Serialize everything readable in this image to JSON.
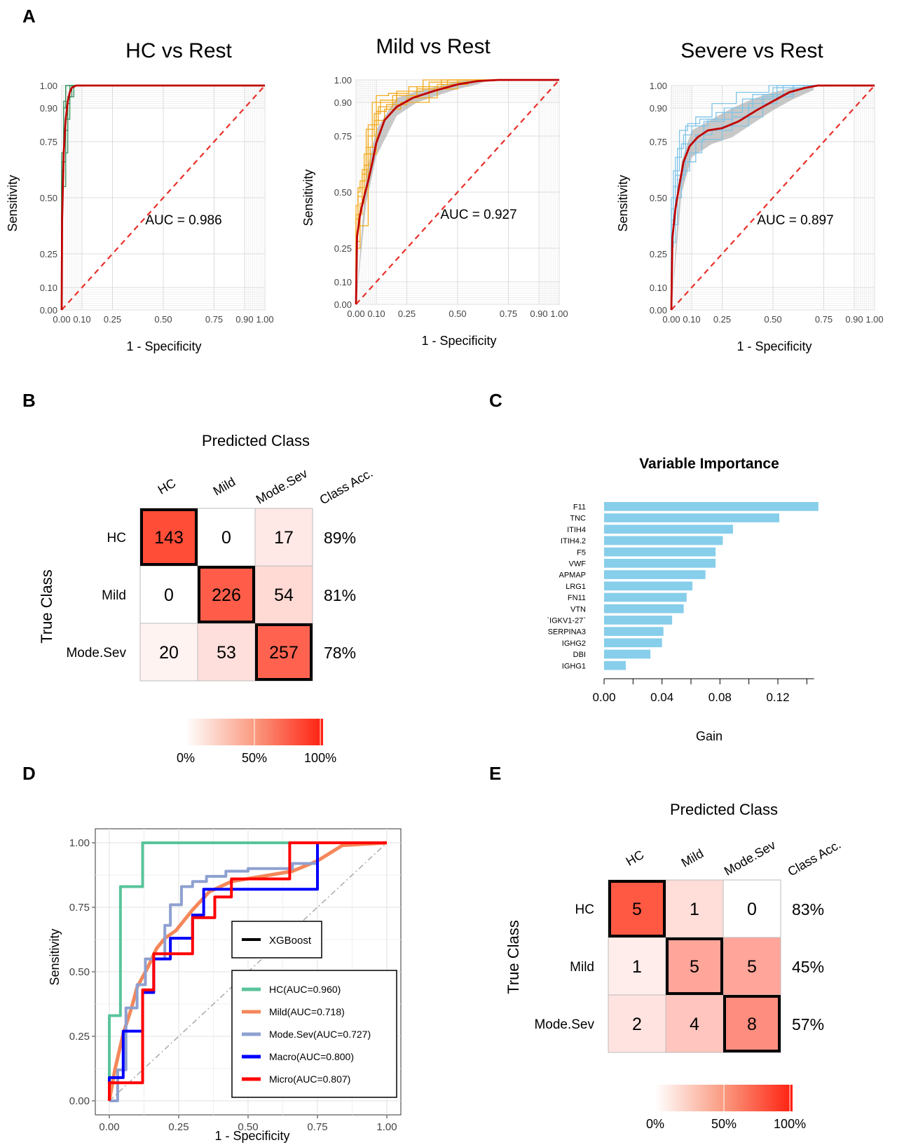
{
  "panels": {
    "A": "A",
    "B": "B",
    "C": "C",
    "D": "D",
    "E": "E"
  },
  "colors": {
    "mean_roc": "#c00000",
    "diagonal": "#e8302a",
    "hc": "#2e8b57",
    "mild": "#f0a81c",
    "severe": "#7fc3e6",
    "gain_bar": "#87ceeb",
    "heat_low": "#ffffff",
    "heat_high": "#ff0000",
    "d_hc": "#59c49b",
    "d_mild": "#f4875a",
    "d_modesev": "#8ea0d0",
    "d_macro": "#0000ff",
    "d_micro": "#ff0000"
  },
  "chart_data": [
    {
      "id": "A1",
      "type": "line",
      "title": "HC vs Rest",
      "xlabel": "1 - Specificity",
      "ylabel": "Sensitivity",
      "xlim": [
        0,
        1
      ],
      "ylim": [
        0,
        1
      ],
      "x_ticks": [
        "0.00",
        "0.10",
        "0.25",
        "0.50",
        "0.75",
        "0.90",
        "1.00"
      ],
      "x_tick_values": [
        0,
        0.1,
        0.25,
        0.5,
        0.75,
        0.9,
        1.0
      ],
      "y_ticks": [
        "0.00",
        "0.10",
        "0.25",
        "0.50",
        "0.75",
        "0.90",
        "1.00"
      ],
      "y_tick_values": [
        0,
        0.1,
        0.25,
        0.5,
        0.75,
        0.9,
        1.0
      ],
      "annotation": "AUC = 0.986",
      "mean_curve": {
        "x": [
          0,
          0.002,
          0.01,
          0.02,
          0.03,
          0.04,
          0.05,
          0.07,
          1.0
        ],
        "y": [
          0,
          0.4,
          0.7,
          0.85,
          0.93,
          0.97,
          0.99,
          1.0,
          1.0
        ]
      },
      "fold_curves": [
        {
          "x": [
            0,
            0.01,
            0.02,
            0.03,
            0.05,
            1
          ],
          "y": [
            0,
            0.58,
            0.9,
            1.0,
            1.0,
            1.0
          ]
        },
        {
          "x": [
            0,
            0.02,
            0.03,
            0.05,
            0.07,
            1
          ],
          "y": [
            0,
            0.55,
            0.7,
            0.95,
            1.0,
            1.0
          ]
        },
        {
          "x": [
            0,
            0.01,
            0.03,
            0.04,
            0.08,
            1
          ],
          "y": [
            0,
            0.62,
            0.8,
            0.92,
            1.0,
            1.0
          ]
        },
        {
          "x": [
            0,
            0.02,
            0.04,
            0.06,
            0.09,
            1
          ],
          "y": [
            0,
            0.66,
            0.85,
            0.95,
            1.0,
            1.0
          ]
        },
        {
          "x": [
            0,
            0.01,
            0.02,
            0.04,
            1
          ],
          "y": [
            0,
            0.7,
            0.93,
            1.0,
            1.0
          ]
        }
      ],
      "color_key": "hc"
    },
    {
      "id": "A2",
      "type": "line",
      "title": "Mild vs Rest",
      "xlabel": "1 - Specificity",
      "ylabel": "Sensitivity",
      "xlim": [
        0,
        1
      ],
      "ylim": [
        0,
        1
      ],
      "x_ticks": [
        "0.00",
        "0.10",
        "0.25",
        "0.50",
        "0.75",
        "0.90",
        "1.00"
      ],
      "x_tick_values": [
        0,
        0.1,
        0.25,
        0.5,
        0.75,
        0.9,
        1.0
      ],
      "y_ticks": [
        "0.00",
        "0.10",
        "0.25",
        "0.50",
        "0.75",
        "0.90",
        "1.00"
      ],
      "y_tick_values": [
        0,
        0.1,
        0.25,
        0.5,
        0.75,
        0.9,
        1.0
      ],
      "annotation": "AUC = 0.927",
      "mean_curve": {
        "x": [
          0,
          0.005,
          0.02,
          0.04,
          0.06,
          0.08,
          0.1,
          0.14,
          0.2,
          0.28,
          0.38,
          0.5,
          0.6,
          0.7,
          1.0
        ],
        "y": [
          0,
          0.3,
          0.4,
          0.48,
          0.55,
          0.63,
          0.72,
          0.82,
          0.88,
          0.92,
          0.95,
          0.98,
          0.995,
          1.0,
          1.0
        ]
      },
      "band": {
        "x": [
          0,
          0.05,
          0.1,
          0.2,
          0.3,
          0.4,
          0.5,
          0.6,
          0.65
        ],
        "lower": [
          0,
          0.45,
          0.66,
          0.84,
          0.9,
          0.93,
          0.96,
          0.98,
          1.0
        ],
        "upper": [
          0,
          0.58,
          0.78,
          0.92,
          0.95,
          0.97,
          0.995,
          1.0,
          1.0
        ]
      },
      "fold_curves": [
        {
          "x": [
            0,
            0.01,
            0.02,
            0.05,
            0.09,
            0.12,
            0.2,
            0.3,
            0.45,
            0.6,
            1
          ],
          "y": [
            0,
            0.32,
            0.5,
            0.55,
            0.78,
            0.85,
            0.9,
            0.93,
            0.97,
            1.0,
            1.0
          ]
        },
        {
          "x": [
            0,
            0.02,
            0.04,
            0.07,
            0.1,
            0.15,
            0.25,
            0.4,
            0.55,
            1
          ],
          "y": [
            0,
            0.25,
            0.45,
            0.62,
            0.7,
            0.86,
            0.89,
            0.92,
            0.98,
            1.0
          ]
        },
        {
          "x": [
            0,
            0.01,
            0.03,
            0.06,
            0.11,
            0.18,
            0.3,
            0.5,
            0.62,
            1
          ],
          "y": [
            0,
            0.38,
            0.48,
            0.6,
            0.8,
            0.88,
            0.93,
            0.96,
            1.0,
            1.0
          ]
        },
        {
          "x": [
            0,
            0.03,
            0.05,
            0.08,
            0.12,
            0.2,
            0.33,
            0.48,
            1
          ],
          "y": [
            0,
            0.4,
            0.58,
            0.7,
            0.9,
            0.91,
            0.95,
            1.0,
            1.0
          ]
        },
        {
          "x": [
            0,
            0.02,
            0.06,
            0.09,
            0.14,
            0.22,
            0.36,
            0.58,
            1
          ],
          "y": [
            0,
            0.28,
            0.35,
            0.75,
            0.82,
            0.87,
            0.9,
            0.99,
            1.0
          ]
        },
        {
          "x": [
            0,
            0.01,
            0.04,
            0.1,
            0.16,
            0.26,
            0.42,
            0.66,
            1
          ],
          "y": [
            0,
            0.44,
            0.52,
            0.67,
            0.93,
            0.94,
            0.97,
            1.0,
            1.0
          ]
        }
      ],
      "color_key": "mild"
    },
    {
      "id": "A3",
      "type": "line",
      "title": "Severe vs Rest",
      "xlabel": "1 - Specificity",
      "ylabel": "Sensitivity",
      "xlim": [
        0,
        1
      ],
      "ylim": [
        0,
        1
      ],
      "x_ticks": [
        "0.00",
        "0.10",
        "0.25",
        "0.50",
        "0.75",
        "0.90",
        "1.00"
      ],
      "x_tick_values": [
        0,
        0.1,
        0.25,
        0.5,
        0.75,
        0.9,
        1.0
      ],
      "y_ticks": [
        "0.00",
        "0.10",
        "0.25",
        "0.50",
        "0.75",
        "0.90",
        "1.00"
      ],
      "y_tick_values": [
        0,
        0.1,
        0.25,
        0.5,
        0.75,
        0.9,
        1.0
      ],
      "annotation": "AUC = 0.897",
      "mean_curve": {
        "x": [
          0,
          0.005,
          0.02,
          0.04,
          0.06,
          0.09,
          0.13,
          0.18,
          0.25,
          0.33,
          0.42,
          0.5,
          0.58,
          0.66,
          0.72,
          1.0
        ],
        "y": [
          0,
          0.32,
          0.45,
          0.56,
          0.66,
          0.73,
          0.77,
          0.8,
          0.81,
          0.84,
          0.89,
          0.93,
          0.97,
          0.99,
          1.0,
          1.0
        ]
      },
      "band": {
        "x": [
          0,
          0.05,
          0.1,
          0.2,
          0.3,
          0.4,
          0.5,
          0.6,
          0.7
        ],
        "lower": [
          0,
          0.52,
          0.68,
          0.74,
          0.77,
          0.83,
          0.89,
          0.94,
          0.98
        ],
        "upper": [
          0,
          0.66,
          0.8,
          0.85,
          0.9,
          0.94,
          0.97,
          0.99,
          1.0
        ]
      },
      "fold_curves": [
        {
          "x": [
            0,
            0.01,
            0.03,
            0.06,
            0.1,
            0.18,
            0.3,
            0.45,
            0.6,
            0.75,
            1
          ],
          "y": [
            0,
            0.4,
            0.55,
            0.72,
            0.78,
            0.82,
            0.85,
            0.9,
            0.96,
            1.0,
            1.0
          ]
        },
        {
          "x": [
            0,
            0.02,
            0.05,
            0.09,
            0.15,
            0.25,
            0.38,
            0.52,
            0.7,
            1
          ],
          "y": [
            0,
            0.3,
            0.5,
            0.62,
            0.7,
            0.76,
            0.82,
            0.92,
            1.0,
            1.0
          ]
        },
        {
          "x": [
            0,
            0.01,
            0.04,
            0.08,
            0.14,
            0.22,
            0.35,
            0.5,
            0.65,
            1
          ],
          "y": [
            0,
            0.45,
            0.62,
            0.8,
            0.83,
            0.85,
            0.88,
            0.94,
            0.99,
            1.0
          ]
        },
        {
          "x": [
            0,
            0.03,
            0.06,
            0.12,
            0.2,
            0.3,
            0.45,
            0.6,
            0.72,
            1
          ],
          "y": [
            0,
            0.38,
            0.58,
            0.66,
            0.78,
            0.8,
            0.86,
            0.95,
            1.0,
            1.0
          ]
        },
        {
          "x": [
            0,
            0.02,
            0.05,
            0.1,
            0.16,
            0.26,
            0.4,
            0.55,
            0.68,
            1
          ],
          "y": [
            0,
            0.5,
            0.68,
            0.74,
            0.75,
            0.84,
            0.9,
            0.96,
            1.0,
            1.0
          ]
        },
        {
          "x": [
            0,
            0.01,
            0.02,
            0.07,
            0.12,
            0.2,
            0.32,
            0.48,
            0.62,
            1
          ],
          "y": [
            0,
            0.28,
            0.42,
            0.6,
            0.82,
            0.86,
            0.92,
            0.97,
            1.0,
            1.0
          ]
        }
      ],
      "color_key": "severe"
    },
    {
      "id": "B",
      "type": "heatmap",
      "title": "Predicted Class",
      "ylabel": "True Class",
      "columns": [
        "HC",
        "Mild",
        "Mode.Sev",
        "Class Acc."
      ],
      "rows": [
        "HC",
        "Mild",
        "Mode.Sev"
      ],
      "values": [
        [
          143,
          0,
          17
        ],
        [
          0,
          226,
          54
        ],
        [
          20,
          53,
          257
        ]
      ],
      "fractions": [
        [
          0.89,
          0.0,
          0.11
        ],
        [
          0.0,
          0.81,
          0.19
        ],
        [
          0.06,
          0.16,
          0.78
        ]
      ],
      "class_acc": [
        "89%",
        "81%",
        "78%"
      ],
      "legend_ticks": [
        "0%",
        "50%",
        "100%"
      ]
    },
    {
      "id": "C",
      "type": "bar",
      "orientation": "horizontal",
      "title": "Variable Importance",
      "xlabel": "Gain",
      "categories": [
        "F11",
        "TNC",
        "ITIH4",
        "ITIH4.2",
        "F5",
        "VWF",
        "APMAP",
        "LRG1",
        "FN11",
        "VTN",
        "`IGKV1-27`",
        "SERPINA3",
        "IGHG2",
        "DBI",
        "IGHG1"
      ],
      "values": [
        0.148,
        0.121,
        0.089,
        0.082,
        0.077,
        0.077,
        0.07,
        0.061,
        0.057,
        0.055,
        0.047,
        0.041,
        0.04,
        0.032,
        0.015
      ],
      "xlim": [
        0,
        0.15
      ],
      "x_ticks": [
        "0.00",
        "0.04",
        "0.08",
        "0.12"
      ],
      "x_tick_values": [
        0,
        0.04,
        0.08,
        0.12
      ]
    },
    {
      "id": "D",
      "type": "line",
      "xlabel": "1 - Specificity",
      "ylabel": "Sensitivity",
      "xlim": [
        0,
        1
      ],
      "ylim": [
        0,
        1
      ],
      "x_ticks": [
        "0.00",
        "0.25",
        "0.50",
        "0.75",
        "1.00"
      ],
      "x_tick_values": [
        0,
        0.25,
        0.5,
        0.75,
        1.0
      ],
      "y_ticks": [
        "0.00",
        "0.25",
        "0.50",
        "0.75",
        "1.00"
      ],
      "y_tick_values": [
        0,
        0.25,
        0.5,
        0.75,
        1.0
      ],
      "legend_title": "XGBoost",
      "series": [
        {
          "name": "HC(AUC=0.960)",
          "color_key": "d_hc",
          "x": [
            0,
            0,
            0.04,
            0.04,
            0.12,
            0.12,
            1.0
          ],
          "y": [
            0,
            0.33,
            0.33,
            0.83,
            0.83,
            1.0,
            1.0
          ]
        },
        {
          "name": "Mild(AUC=0.718)",
          "color_key": "d_mild",
          "x": [
            0,
            0.02,
            0.05,
            0.08,
            0.1,
            0.14,
            0.17,
            0.2,
            0.24,
            0.3,
            0.36,
            0.44,
            0.55,
            0.66,
            0.75,
            0.84,
            1.0
          ],
          "y": [
            0,
            0.12,
            0.26,
            0.36,
            0.44,
            0.52,
            0.59,
            0.63,
            0.66,
            0.74,
            0.81,
            0.85,
            0.87,
            0.89,
            0.93,
            0.99,
            1.0
          ]
        },
        {
          "name": "Mode.Sev(AUC=0.727)",
          "color_key": "d_modesev",
          "x": [
            0,
            0.03,
            0.03,
            0.06,
            0.06,
            0.1,
            0.1,
            0.13,
            0.13,
            0.2,
            0.2,
            0.22,
            0.22,
            0.26,
            0.26,
            0.3,
            0.3,
            0.35,
            0.35,
            0.42,
            0.42,
            0.5,
            0.5,
            0.66,
            0.66,
            0.75,
            0.75,
            1.0
          ],
          "y": [
            0,
            0,
            0.12,
            0.12,
            0.36,
            0.36,
            0.45,
            0.45,
            0.55,
            0.55,
            0.68,
            0.68,
            0.76,
            0.76,
            0.83,
            0.83,
            0.85,
            0.85,
            0.87,
            0.87,
            0.89,
            0.89,
            0.9,
            0.9,
            0.92,
            0.92,
            1.0,
            1.0
          ]
        },
        {
          "name": "Macro(AUC=0.800)",
          "color_key": "d_macro",
          "x": [
            0,
            0,
            0.05,
            0.05,
            0.12,
            0.12,
            0.16,
            0.16,
            0.22,
            0.22,
            0.3,
            0.3,
            0.34,
            0.34,
            0.44,
            0.44,
            0.75,
            0.75,
            1.0
          ],
          "y": [
            0,
            0.09,
            0.09,
            0.27,
            0.27,
            0.42,
            0.42,
            0.55,
            0.55,
            0.63,
            0.63,
            0.72,
            0.72,
            0.82,
            0.82,
            0.82,
            0.82,
            1.0,
            1.0
          ]
        },
        {
          "name": "Micro(AUC=0.807)",
          "color_key": "d_micro",
          "x": [
            0,
            0,
            0.05,
            0.05,
            0.12,
            0.12,
            0.16,
            0.16,
            0.3,
            0.3,
            0.38,
            0.38,
            0.44,
            0.44,
            0.65,
            0.65,
            0.75,
            0.75,
            1.0
          ],
          "y": [
            0,
            0.07,
            0.07,
            0.07,
            0.07,
            0.43,
            0.43,
            0.57,
            0.57,
            0.71,
            0.71,
            0.79,
            0.79,
            0.86,
            0.86,
            1.0,
            1.0,
            1.0,
            1.0
          ]
        }
      ]
    },
    {
      "id": "E",
      "type": "heatmap",
      "title": "Predicted Class",
      "ylabel": "True Class",
      "columns": [
        "HC",
        "Mild",
        "Mode.Sev",
        "Class Acc."
      ],
      "rows": [
        "HC",
        "Mild",
        "Mode.Sev"
      ],
      "values": [
        [
          5,
          1,
          0
        ],
        [
          1,
          5,
          5
        ],
        [
          2,
          4,
          8
        ]
      ],
      "fractions": [
        [
          0.83,
          0.17,
          0.0
        ],
        [
          0.09,
          0.45,
          0.45
        ],
        [
          0.14,
          0.29,
          0.57
        ]
      ],
      "class_acc": [
        "83%",
        "45%",
        "57%"
      ],
      "legend_ticks": [
        "0%",
        "50%",
        "100%"
      ]
    }
  ]
}
